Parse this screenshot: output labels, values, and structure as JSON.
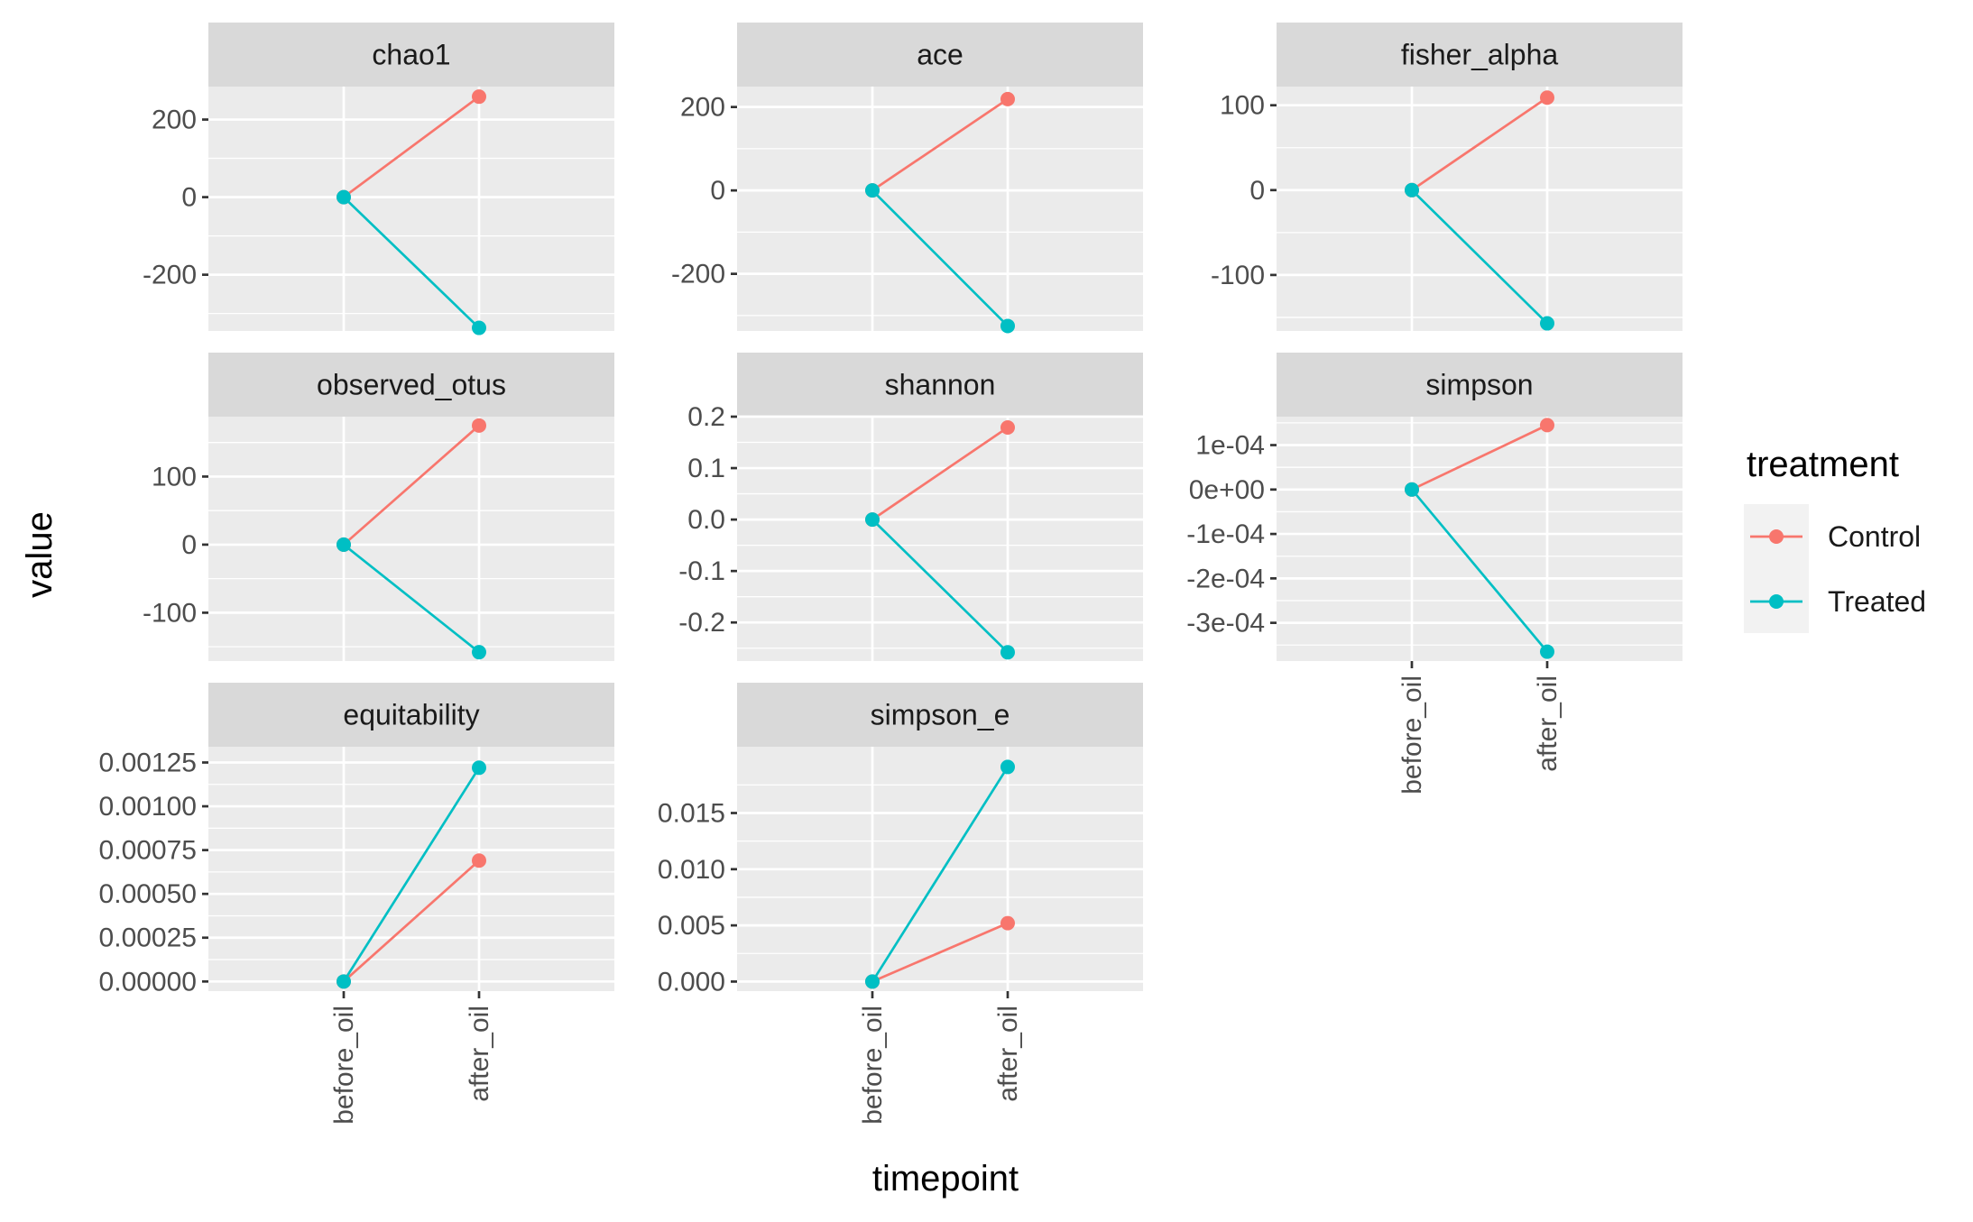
{
  "chart_data": {
    "type": "line",
    "facet_wrap": true,
    "x_categories": [
      "before_oil",
      "after_oil"
    ],
    "xlabel": "timepoint",
    "ylabel": "value",
    "legend": {
      "title": "treatment",
      "placement": "right",
      "entries": [
        {
          "name": "Control",
          "color": "#F8766D"
        },
        {
          "name": "Treated",
          "color": "#00BFC4"
        }
      ]
    },
    "grid": true,
    "panels": [
      {
        "title": "chao1",
        "ylim": [
          -345,
          285
        ],
        "yticks": [
          {
            "v": 200,
            "label": "200"
          },
          {
            "v": 0,
            "label": "0"
          },
          {
            "v": -200,
            "label": "-200"
          }
        ],
        "series": [
          {
            "name": "Control",
            "values": [
              0,
              259
            ]
          },
          {
            "name": "Treated",
            "values": [
              0,
              -337
            ]
          }
        ]
      },
      {
        "title": "ace",
        "ylim": [
          -337,
          249
        ],
        "yticks": [
          {
            "v": 200,
            "label": "200"
          },
          {
            "v": 0,
            "label": "0"
          },
          {
            "v": -200,
            "label": "-200"
          }
        ],
        "series": [
          {
            "name": "Control",
            "values": [
              0,
              219
            ]
          },
          {
            "name": "Treated",
            "values": [
              0,
              -325
            ]
          }
        ]
      },
      {
        "title": "fisher_alpha",
        "ylim": [
          -166,
          122
        ],
        "yticks": [
          {
            "v": 100,
            "label": "100"
          },
          {
            "v": 0,
            "label": "0"
          },
          {
            "v": -100,
            "label": "-100"
          }
        ],
        "series": [
          {
            "name": "Control",
            "values": [
              0,
              109
            ]
          },
          {
            "name": "Treated",
            "values": [
              0,
              -157
            ]
          }
        ]
      },
      {
        "title": "observed_otus",
        "ylim": [
          -171,
          188
        ],
        "yticks": [
          {
            "v": 100,
            "label": "100"
          },
          {
            "v": 0,
            "label": "0"
          },
          {
            "v": -100,
            "label": "-100"
          }
        ],
        "series": [
          {
            "name": "Control",
            "values": [
              0,
              175
            ]
          },
          {
            "name": "Treated",
            "values": [
              0,
              -158
            ]
          }
        ]
      },
      {
        "title": "shannon",
        "ylim": [
          -0.275,
          0.2
        ],
        "yticks": [
          {
            "v": 0.2,
            "label": "0.2"
          },
          {
            "v": 0.1,
            "label": "0.1"
          },
          {
            "v": 0.0,
            "label": "0.0"
          },
          {
            "v": -0.1,
            "label": "-0.1"
          },
          {
            "v": -0.2,
            "label": "-0.2"
          }
        ],
        "series": [
          {
            "name": "Control",
            "values": [
              0,
              0.179
            ]
          },
          {
            "name": "Treated",
            "values": [
              0,
              -0.258
            ]
          }
        ]
      },
      {
        "title": "simpson",
        "ylim": [
          -0.000386,
          0.000164
        ],
        "yticks": [
          {
            "v": 0.0001,
            "label": "1e-04"
          },
          {
            "v": 0,
            "label": "0e+00"
          },
          {
            "v": -0.0001,
            "label": "-1e-04"
          },
          {
            "v": -0.0002,
            "label": "-2e-04"
          },
          {
            "v": -0.0003,
            "label": "-3e-04"
          }
        ],
        "series": [
          {
            "name": "Control",
            "values": [
              0,
              0.000145
            ]
          },
          {
            "name": "Treated",
            "values": [
              0,
              -0.000365
            ]
          }
        ]
      },
      {
        "title": "equitability",
        "ylim": [
          -5.5e-05,
          0.00134
        ],
        "yticks": [
          {
            "v": 0.00125,
            "label": "0.00125"
          },
          {
            "v": 0.001,
            "label": "0.00100"
          },
          {
            "v": 0.00075,
            "label": "0.00075"
          },
          {
            "v": 0.0005,
            "label": "0.00050"
          },
          {
            "v": 0.00025,
            "label": "0.00025"
          },
          {
            "v": 0,
            "label": "0.00000"
          }
        ],
        "series": [
          {
            "name": "Control",
            "values": [
              0,
              0.00069
            ]
          },
          {
            "name": "Treated",
            "values": [
              0,
              0.00122
            ]
          }
        ]
      },
      {
        "title": "simpson_e",
        "ylim": [
          -0.00085,
          0.0209
        ],
        "yticks": [
          {
            "v": 0.015,
            "label": "0.015"
          },
          {
            "v": 0.01,
            "label": "0.010"
          },
          {
            "v": 0.005,
            "label": "0.005"
          },
          {
            "v": 0,
            "label": "0.000"
          }
        ],
        "series": [
          {
            "name": "Control",
            "values": [
              0,
              0.0052
            ]
          },
          {
            "name": "Treated",
            "values": [
              0,
              0.0191
            ]
          }
        ]
      }
    ]
  }
}
